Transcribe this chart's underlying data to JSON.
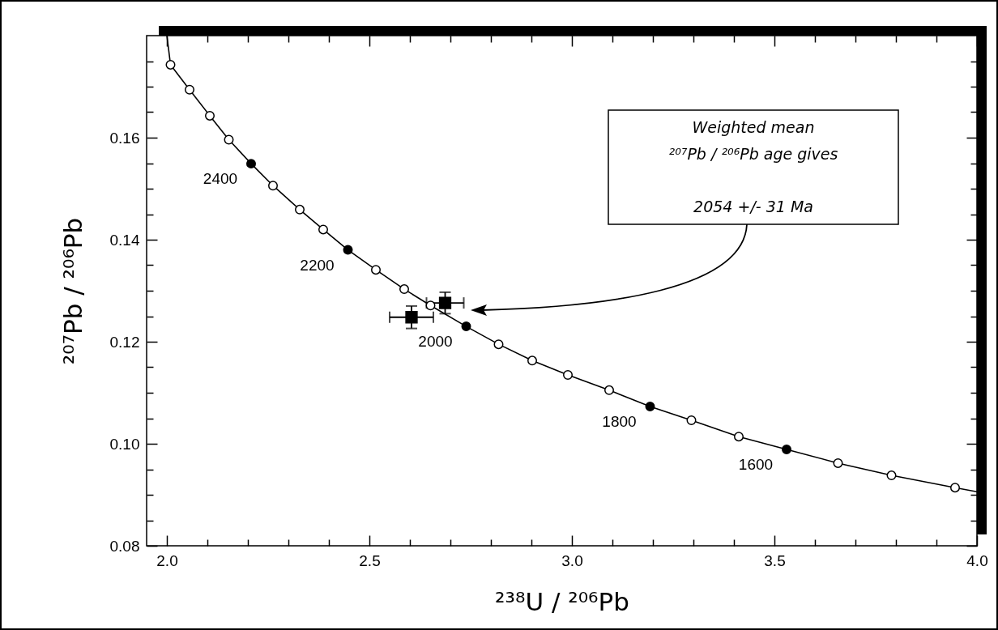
{
  "chart_data": {
    "type": "scatter",
    "xlabel": "²³⁸U / ²⁰⁶Pb",
    "ylabel": "²⁰⁷Pb / ²⁰⁶Pb",
    "xlim": [
      1.95,
      4.0
    ],
    "ylim": [
      0.08,
      0.18
    ],
    "xticks": [
      {
        "value": 2,
        "label": "2.0"
      },
      {
        "value": 2.1,
        "label": null
      },
      {
        "value": 2.2,
        "label": null
      },
      {
        "value": 2.3,
        "label": null
      },
      {
        "value": 2.4,
        "label": null
      },
      2.5,
      {
        "value": 2.6,
        "label": null
      },
      {
        "value": 2.7,
        "label": null
      },
      {
        "value": 2.8,
        "label": null
      },
      {
        "value": 2.9,
        "label": null
      },
      {
        "value": 3,
        "label": "3.0"
      },
      {
        "value": 3.1,
        "label": null
      },
      {
        "value": 3.2,
        "label": null
      },
      {
        "value": 3.3,
        "label": null
      },
      {
        "value": 3.4,
        "label": null
      },
      3.5,
      {
        "value": 3.6,
        "label": null
      },
      {
        "value": 3.7,
        "label": null
      },
      {
        "value": 3.8,
        "label": null
      },
      {
        "value": 3.9,
        "label": null
      },
      {
        "value": 4,
        "label": "4.0"
      }
    ],
    "yticks": [
      0.08,
      {
        "value": 0.085,
        "label": null
      },
      {
        "value": 0.09,
        "label": null
      },
      {
        "value": 0.095,
        "label": null
      },
      {
        "value": 0.1,
        "label": "0.10"
      },
      {
        "value": 0.105,
        "label": null
      },
      {
        "value": 0.11,
        "label": null
      },
      {
        "value": 0.115,
        "label": null
      },
      0.12,
      {
        "value": 0.125,
        "label": null
      },
      {
        "value": 0.13,
        "label": null
      },
      {
        "value": 0.135,
        "label": null
      },
      0.14,
      {
        "value": 0.145,
        "label": null
      },
      {
        "value": 0.15,
        "label": null
      },
      {
        "value": 0.155,
        "label": null
      },
      0.16,
      {
        "value": 0.165,
        "label": null
      },
      {
        "value": 0.17,
        "label": null
      },
      {
        "value": 0.175,
        "label": null
      }
    ],
    "series": [
      {
        "type": "line",
        "color": "#000000",
        "marker": "none",
        "line_style": "solid",
        "x": [
          2.0,
          2.009,
          2.056,
          2.106,
          2.153,
          2.208,
          2.262,
          2.328,
          2.386,
          2.447,
          2.516,
          2.586,
          2.651,
          2.739,
          2.819,
          2.902,
          2.99,
          3.092,
          3.193,
          3.295,
          3.412,
          3.53,
          3.657,
          3.789,
          3.946,
          4.0
        ],
        "values": [
          0.18,
          0.1743,
          0.1694,
          0.1643,
          0.1596,
          0.1549,
          0.1506,
          0.1459,
          0.142,
          0.138,
          0.1341,
          0.1303,
          0.1271,
          0.123,
          0.1195,
          0.1163,
          0.1135,
          0.1105,
          0.1073,
          0.1046,
          0.1014,
          0.0989,
          0.0962,
          0.0938,
          0.0914,
          0.0906
        ]
      },
      {
        "color": "#ffffff",
        "marker": "circle",
        "x": [
          2.009,
          2.056,
          2.106,
          2.153,
          2.262,
          2.328,
          2.386,
          2.516,
          2.586,
          2.651,
          2.819,
          2.902,
          2.99,
          3.092,
          3.295,
          3.412,
          3.657,
          3.789,
          3.946
        ],
        "values": [
          0.1743,
          0.1694,
          0.1643,
          0.1596,
          0.1506,
          0.1459,
          0.142,
          0.1341,
          0.1303,
          0.1271,
          0.1195,
          0.1163,
          0.1135,
          0.1105,
          0.1046,
          0.1014,
          0.0962,
          0.0938,
          0.0914
        ]
      },
      {
        "color": "#000000",
        "marker": "circle",
        "x": [
          2.208,
          2.447,
          2.739,
          3.193,
          3.53
        ],
        "values": [
          0.1549,
          0.138,
          0.123,
          0.1073,
          0.0989
        ]
      },
      {
        "color": "#000000",
        "marker": "square",
        "x": [
          2.604,
          2.687
        ],
        "values": [
          0.1248,
          0.1276
        ],
        "errors": [
          0.0022,
          0.0021
        ],
        "xerrors": [
          0.054,
          0.046
        ]
      }
    ],
    "annotations": [
      {
        "text": "2400",
        "x": 2.208,
        "y": 0.1549
      },
      {
        "text": "2200",
        "x": 2.447,
        "y": 0.138
      },
      {
        "text": "2000",
        "x": 2.739,
        "y": 0.123
      },
      {
        "text": "1800",
        "x": 3.193,
        "y": 0.1073
      },
      {
        "text": "1600",
        "x": 3.53,
        "y": 0.0989
      },
      "Weighted mean\n²⁰⁷Pb / ²⁰⁶Pb age gives\n\n2054 +/- 31 Ma"
    ]
  }
}
